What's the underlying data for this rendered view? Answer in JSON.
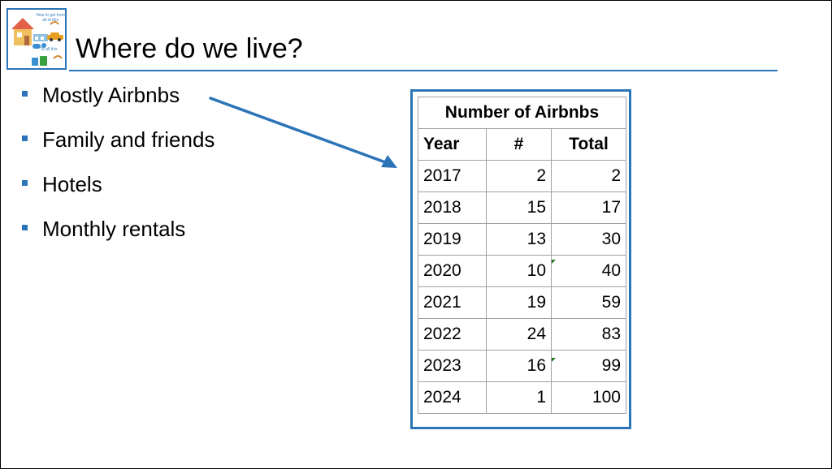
{
  "logo": {
    "caption_top": "How to get from all of this",
    "caption_bottom": "To all this"
  },
  "title": "Where do we live?",
  "bullets": [
    "Mostly Airbnbs",
    "Family and friends",
    "Hotels",
    "Monthly rentals"
  ],
  "table": {
    "caption": "Number of Airbnbs",
    "headers": {
      "year": "Year",
      "count": "#",
      "total": "Total"
    },
    "rows": [
      {
        "year": "2017",
        "count": "2",
        "total": "2"
      },
      {
        "year": "2018",
        "count": "15",
        "total": "17"
      },
      {
        "year": "2019",
        "count": "13",
        "total": "30"
      },
      {
        "year": "2020",
        "count": "10",
        "total": "40"
      },
      {
        "year": "2021",
        "count": "19",
        "total": "59"
      },
      {
        "year": "2022",
        "count": "24",
        "total": "83"
      },
      {
        "year": "2023",
        "count": "16",
        "total": "99"
      },
      {
        "year": "2024",
        "count": "1",
        "total": "100"
      }
    ]
  },
  "colors": {
    "accent": "#2b74b8",
    "grid": "#a0a0a0",
    "cell_marker": "#1f7a1f"
  },
  "icons": [
    "house-icon",
    "car-icon",
    "luggage-icon",
    "arrow-icon"
  ]
}
